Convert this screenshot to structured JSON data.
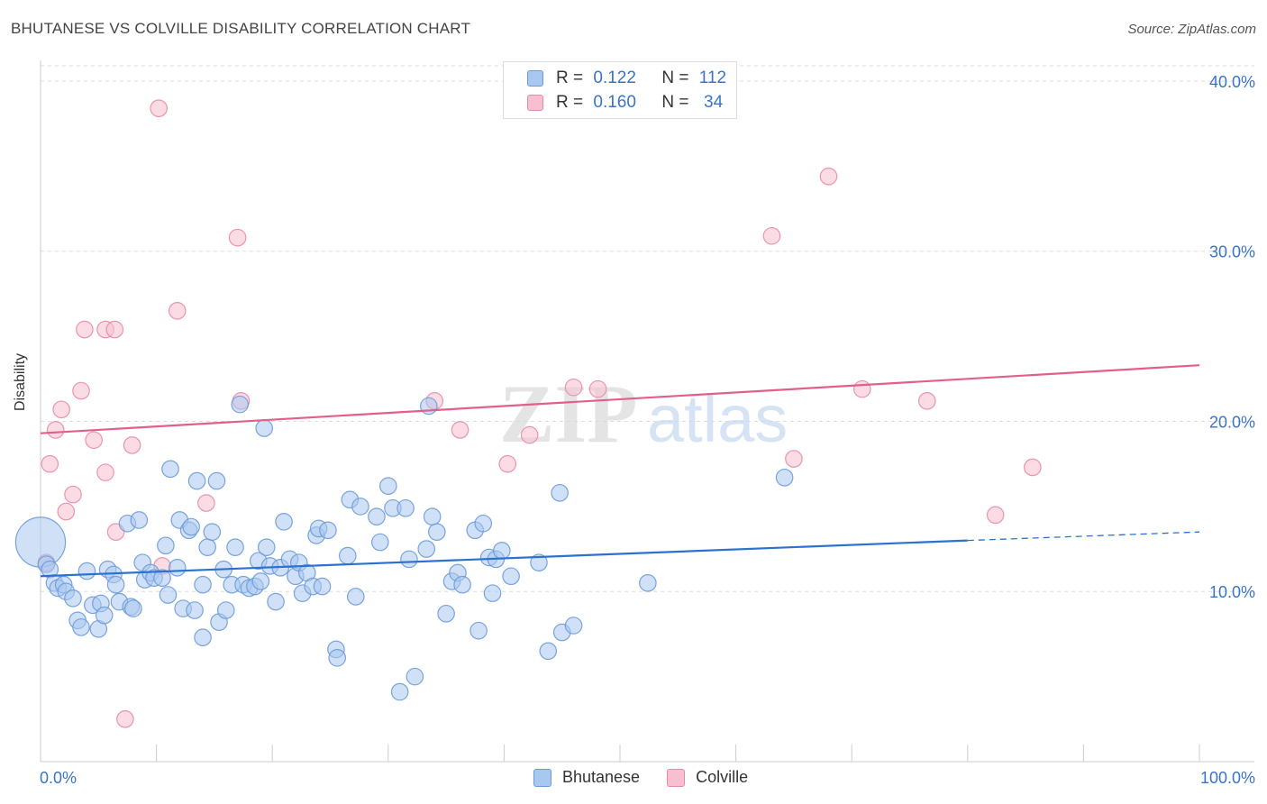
{
  "header": {
    "title": "BHUTANESE VS COLVILLE DISABILITY CORRELATION CHART",
    "source": "Source: ZipAtlas.com"
  },
  "legend_box": {
    "rows": [
      {
        "r_label": "R =",
        "r_value": "0.122",
        "n_label": "N =",
        "n_value": "112"
      },
      {
        "r_label": "R =",
        "r_value": "0.160",
        "n_label": "N =",
        "n_value": " 34"
      }
    ]
  },
  "bottom_legend": [
    "Bhutanese",
    "Colville"
  ],
  "watermark": {
    "zip": "ZIP",
    "atlas": "atlas"
  },
  "colors": {
    "bhutanese_fill": "#a9c8f0",
    "bhutanese_stroke": "#6b9ad8",
    "bhutanese_line": "#2b72d0",
    "colville_fill": "#f7bfd0",
    "colville_stroke": "#e88aa6",
    "colville_line": "#e0608a",
    "tick_label": "#3a74c8",
    "grid": "#dddddd"
  },
  "chart_data": {
    "type": "scatter",
    "title": "BHUTANESE VS COLVILLE DISABILITY CORRELATION CHART",
    "xlabel": "",
    "ylabel": "Disability",
    "xlim": [
      0,
      100
    ],
    "ylim": [
      0,
      40.9
    ],
    "x_ticks": [
      "0.0%",
      "100.0%"
    ],
    "y_ticks": [
      {
        "value": 10,
        "label": "10.0%"
      },
      {
        "value": 20,
        "label": "20.0%"
      },
      {
        "value": 30,
        "label": "30.0%"
      },
      {
        "value": 40,
        "label": "40.0%"
      }
    ],
    "grid": true,
    "legend_position": "top-center",
    "series": [
      {
        "name": "Bhutanese",
        "r": 0.122,
        "n": 112,
        "trend": {
          "x0": 0,
          "y0": 10.9,
          "x1": 80,
          "y1": 13.0,
          "dashed_to_x": 100,
          "dashed_to_y": 13.5
        },
        "points": [
          [
            0.0,
            12.9,
            30
          ],
          [
            0.5,
            11.6,
            10
          ],
          [
            0.8,
            11.3,
            10
          ],
          [
            1.2,
            10.5,
            10
          ],
          [
            1.5,
            10.2,
            10
          ],
          [
            2.0,
            10.4,
            10
          ],
          [
            2.2,
            10.0,
            10
          ],
          [
            2.8,
            9.6,
            10
          ],
          [
            3.2,
            8.3,
            10
          ],
          [
            3.5,
            7.9,
            10
          ],
          [
            4.0,
            11.2,
            10
          ],
          [
            4.5,
            9.2,
            10
          ],
          [
            5.0,
            7.8,
            10
          ],
          [
            5.2,
            9.3,
            10
          ],
          [
            5.5,
            8.6,
            10
          ],
          [
            5.8,
            11.3,
            10
          ],
          [
            6.3,
            11.0,
            10
          ],
          [
            6.5,
            10.4,
            10
          ],
          [
            6.8,
            9.4,
            10
          ],
          [
            7.5,
            14.0,
            10
          ],
          [
            7.8,
            9.1,
            10
          ],
          [
            8.0,
            9.0,
            10
          ],
          [
            8.5,
            14.2,
            10
          ],
          [
            8.8,
            11.7,
            10
          ],
          [
            9.0,
            10.7,
            10
          ],
          [
            9.5,
            11.1,
            10
          ],
          [
            9.8,
            10.8,
            10
          ],
          [
            10.5,
            10.8,
            10
          ],
          [
            10.8,
            12.7,
            10
          ],
          [
            11.0,
            9.8,
            10
          ],
          [
            11.2,
            17.2,
            10
          ],
          [
            11.8,
            11.4,
            10
          ],
          [
            12.0,
            14.2,
            10
          ],
          [
            12.3,
            9.0,
            10
          ],
          [
            12.8,
            13.6,
            10
          ],
          [
            13.0,
            13.8,
            10
          ],
          [
            13.3,
            8.9,
            10
          ],
          [
            13.5,
            16.5,
            10
          ],
          [
            14.0,
            10.4,
            10
          ],
          [
            14.0,
            7.3,
            10
          ],
          [
            14.4,
            12.6,
            10
          ],
          [
            14.8,
            13.5,
            10
          ],
          [
            15.2,
            16.5,
            10
          ],
          [
            15.4,
            8.2,
            10
          ],
          [
            15.8,
            11.3,
            10
          ],
          [
            16.0,
            8.9,
            10
          ],
          [
            16.5,
            10.4,
            10
          ],
          [
            16.8,
            12.6,
            10
          ],
          [
            17.2,
            21.0,
            10
          ],
          [
            17.5,
            10.4,
            10
          ],
          [
            18.0,
            10.2,
            10
          ],
          [
            18.5,
            10.3,
            10
          ],
          [
            18.8,
            11.8,
            10
          ],
          [
            19.0,
            10.6,
            10
          ],
          [
            19.3,
            19.6,
            10
          ],
          [
            19.5,
            12.6,
            10
          ],
          [
            19.8,
            11.5,
            10
          ],
          [
            20.3,
            9.4,
            10
          ],
          [
            20.7,
            11.4,
            10
          ],
          [
            21.0,
            14.1,
            10
          ],
          [
            21.5,
            11.9,
            10
          ],
          [
            22.0,
            10.9,
            10
          ],
          [
            22.3,
            11.7,
            10
          ],
          [
            22.6,
            9.9,
            10
          ],
          [
            23.0,
            11.1,
            10
          ],
          [
            23.5,
            10.3,
            10
          ],
          [
            23.8,
            13.3,
            10
          ],
          [
            24.0,
            13.7,
            10
          ],
          [
            24.3,
            10.3,
            10
          ],
          [
            24.8,
            13.6,
            10
          ],
          [
            25.5,
            6.6,
            10
          ],
          [
            25.6,
            6.1,
            10
          ],
          [
            26.5,
            12.1,
            10
          ],
          [
            26.7,
            15.4,
            10
          ],
          [
            27.2,
            9.7,
            10
          ],
          [
            27.6,
            15.0,
            10
          ],
          [
            29.0,
            14.4,
            10
          ],
          [
            29.3,
            12.9,
            10
          ],
          [
            30.0,
            16.2,
            10
          ],
          [
            30.4,
            14.9,
            10
          ],
          [
            31.0,
            4.1,
            10
          ],
          [
            31.5,
            14.9,
            10
          ],
          [
            31.8,
            11.9,
            10
          ],
          [
            32.3,
            5.0,
            10
          ],
          [
            33.3,
            12.5,
            10
          ],
          [
            33.5,
            20.9,
            10
          ],
          [
            33.8,
            14.4,
            10
          ],
          [
            34.2,
            13.5,
            10
          ],
          [
            35.0,
            8.7,
            10
          ],
          [
            35.5,
            10.6,
            10
          ],
          [
            36.0,
            11.1,
            10
          ],
          [
            36.4,
            10.4,
            10
          ],
          [
            37.5,
            13.6,
            10
          ],
          [
            37.8,
            7.7,
            10
          ],
          [
            38.2,
            14.0,
            10
          ],
          [
            38.7,
            12.0,
            10
          ],
          [
            39.0,
            9.9,
            10
          ],
          [
            39.3,
            11.9,
            10
          ],
          [
            39.8,
            12.4,
            10
          ],
          [
            40.6,
            10.9,
            10
          ],
          [
            43.0,
            11.7,
            10
          ],
          [
            43.8,
            6.5,
            10
          ],
          [
            44.8,
            15.8,
            10
          ],
          [
            45.0,
            7.6,
            10
          ],
          [
            46.0,
            8.0,
            10
          ],
          [
            52.4,
            10.5,
            10
          ],
          [
            64.2,
            16.7,
            10
          ]
        ]
      },
      {
        "name": "Colville",
        "r": 0.16,
        "n": 34,
        "trend": {
          "x0": 0,
          "y0": 19.3,
          "x1": 100,
          "y1": 23.3
        },
        "points": [
          [
            0.5,
            11.7,
            10
          ],
          [
            0.8,
            17.5,
            10
          ],
          [
            1.3,
            19.5,
            10
          ],
          [
            1.8,
            20.7,
            10
          ],
          [
            2.2,
            14.7,
            10
          ],
          [
            2.8,
            15.7,
            10
          ],
          [
            3.5,
            21.8,
            10
          ],
          [
            3.8,
            25.4,
            10
          ],
          [
            4.6,
            18.9,
            10
          ],
          [
            5.6,
            17.0,
            10
          ],
          [
            5.6,
            25.4,
            10
          ],
          [
            6.4,
            25.4,
            10
          ],
          [
            6.5,
            13.5,
            10
          ],
          [
            7.3,
            2.5,
            10
          ],
          [
            7.9,
            18.6,
            10
          ],
          [
            10.2,
            38.4,
            10
          ],
          [
            10.5,
            11.5,
            10
          ],
          [
            11.8,
            26.5,
            10
          ],
          [
            14.3,
            15.2,
            10
          ],
          [
            17.0,
            30.8,
            10
          ],
          [
            17.3,
            21.2,
            10
          ],
          [
            34.0,
            21.2,
            10
          ],
          [
            36.2,
            19.5,
            10
          ],
          [
            40.3,
            17.5,
            10
          ],
          [
            42.2,
            19.2,
            10
          ],
          [
            46.0,
            22.0,
            10
          ],
          [
            48.1,
            21.9,
            10
          ],
          [
            63.1,
            30.9,
            10
          ],
          [
            65.0,
            17.8,
            10
          ],
          [
            68.0,
            34.4,
            10
          ],
          [
            70.9,
            21.9,
            10
          ],
          [
            76.5,
            21.2,
            10
          ],
          [
            82.4,
            14.5,
            10
          ],
          [
            85.6,
            17.3,
            10
          ]
        ]
      }
    ]
  }
}
